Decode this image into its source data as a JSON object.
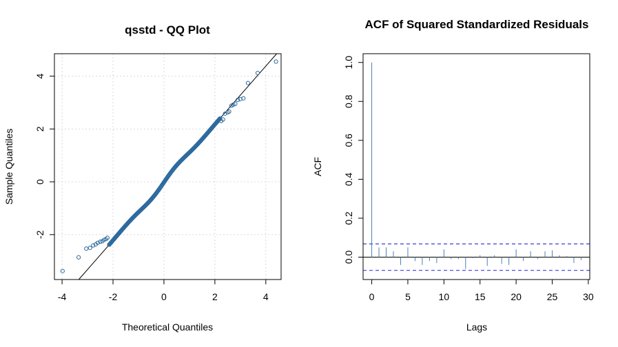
{
  "colors": {
    "points": "#2e6a9e",
    "bars": "#4a7fb5",
    "ci": "#3b3bdb",
    "ref": "#000000"
  },
  "chart_data": [
    {
      "type": "scatter",
      "title": "qsstd - QQ Plot",
      "xlabel": "Theoretical Quantiles",
      "ylabel": "Sample Quantiles",
      "xlim": [
        -4.3,
        4.6
      ],
      "ylim": [
        -3.7,
        4.85
      ],
      "xticks": [
        -4,
        -2,
        0,
        2,
        4
      ],
      "yticks": [
        -2,
        0,
        2,
        4
      ],
      "grid": true,
      "reference_line": {
        "intercept": -0.02,
        "slope": 1.1
      },
      "tail_points": [
        [
          -3.98,
          -3.38
        ],
        [
          -3.35,
          -2.86
        ],
        [
          -3.05,
          -2.53
        ],
        [
          -2.9,
          -2.5
        ],
        [
          -2.78,
          -2.41
        ],
        [
          -2.68,
          -2.37
        ],
        [
          -2.6,
          -2.31
        ],
        [
          -2.5,
          -2.27
        ],
        [
          -2.42,
          -2.25
        ],
        [
          -2.35,
          -2.2
        ],
        [
          -2.28,
          -2.17
        ],
        [
          -2.22,
          -2.12
        ],
        [
          2.25,
          2.3
        ],
        [
          2.32,
          2.36
        ],
        [
          2.4,
          2.58
        ],
        [
          2.5,
          2.63
        ],
        [
          2.56,
          2.66
        ],
        [
          2.65,
          2.88
        ],
        [
          2.72,
          2.92
        ],
        [
          2.8,
          2.95
        ],
        [
          2.9,
          3.1
        ],
        [
          3.0,
          3.13
        ],
        [
          3.12,
          3.16
        ],
        [
          3.3,
          3.74
        ],
        [
          3.68,
          4.12
        ],
        [
          4.4,
          4.55
        ]
      ]
    },
    {
      "type": "bar",
      "title": "ACF of Squared Standardized Residuals",
      "xlabel": "Lags",
      "ylabel": "ACF",
      "xlim": [
        -1.2,
        30.2
      ],
      "ylim": [
        -0.115,
        1.045
      ],
      "xticks": [
        0,
        5,
        10,
        15,
        20,
        25,
        30
      ],
      "yticks": [
        "0.0",
        "0.2",
        "0.4",
        "0.6",
        "0.8",
        "1.0"
      ],
      "ci": 0.068,
      "lags": [
        0,
        1,
        2,
        3,
        4,
        5,
        6,
        7,
        8,
        9,
        10,
        11,
        12,
        13,
        14,
        15,
        16,
        17,
        18,
        19,
        20,
        21,
        22,
        23,
        24,
        25,
        26,
        27,
        28,
        29
      ],
      "values": [
        1.0,
        0.05,
        0.05,
        0.03,
        -0.04,
        0.05,
        -0.02,
        -0.04,
        -0.02,
        -0.03,
        0.04,
        -0.01,
        -0.01,
        -0.06,
        -0.005,
        0.01,
        -0.045,
        0.01,
        -0.035,
        -0.04,
        0.04,
        -0.02,
        0.03,
        -0.01,
        0.03,
        0.035,
        0.01,
        0.005,
        -0.03,
        -0.015
      ]
    }
  ]
}
